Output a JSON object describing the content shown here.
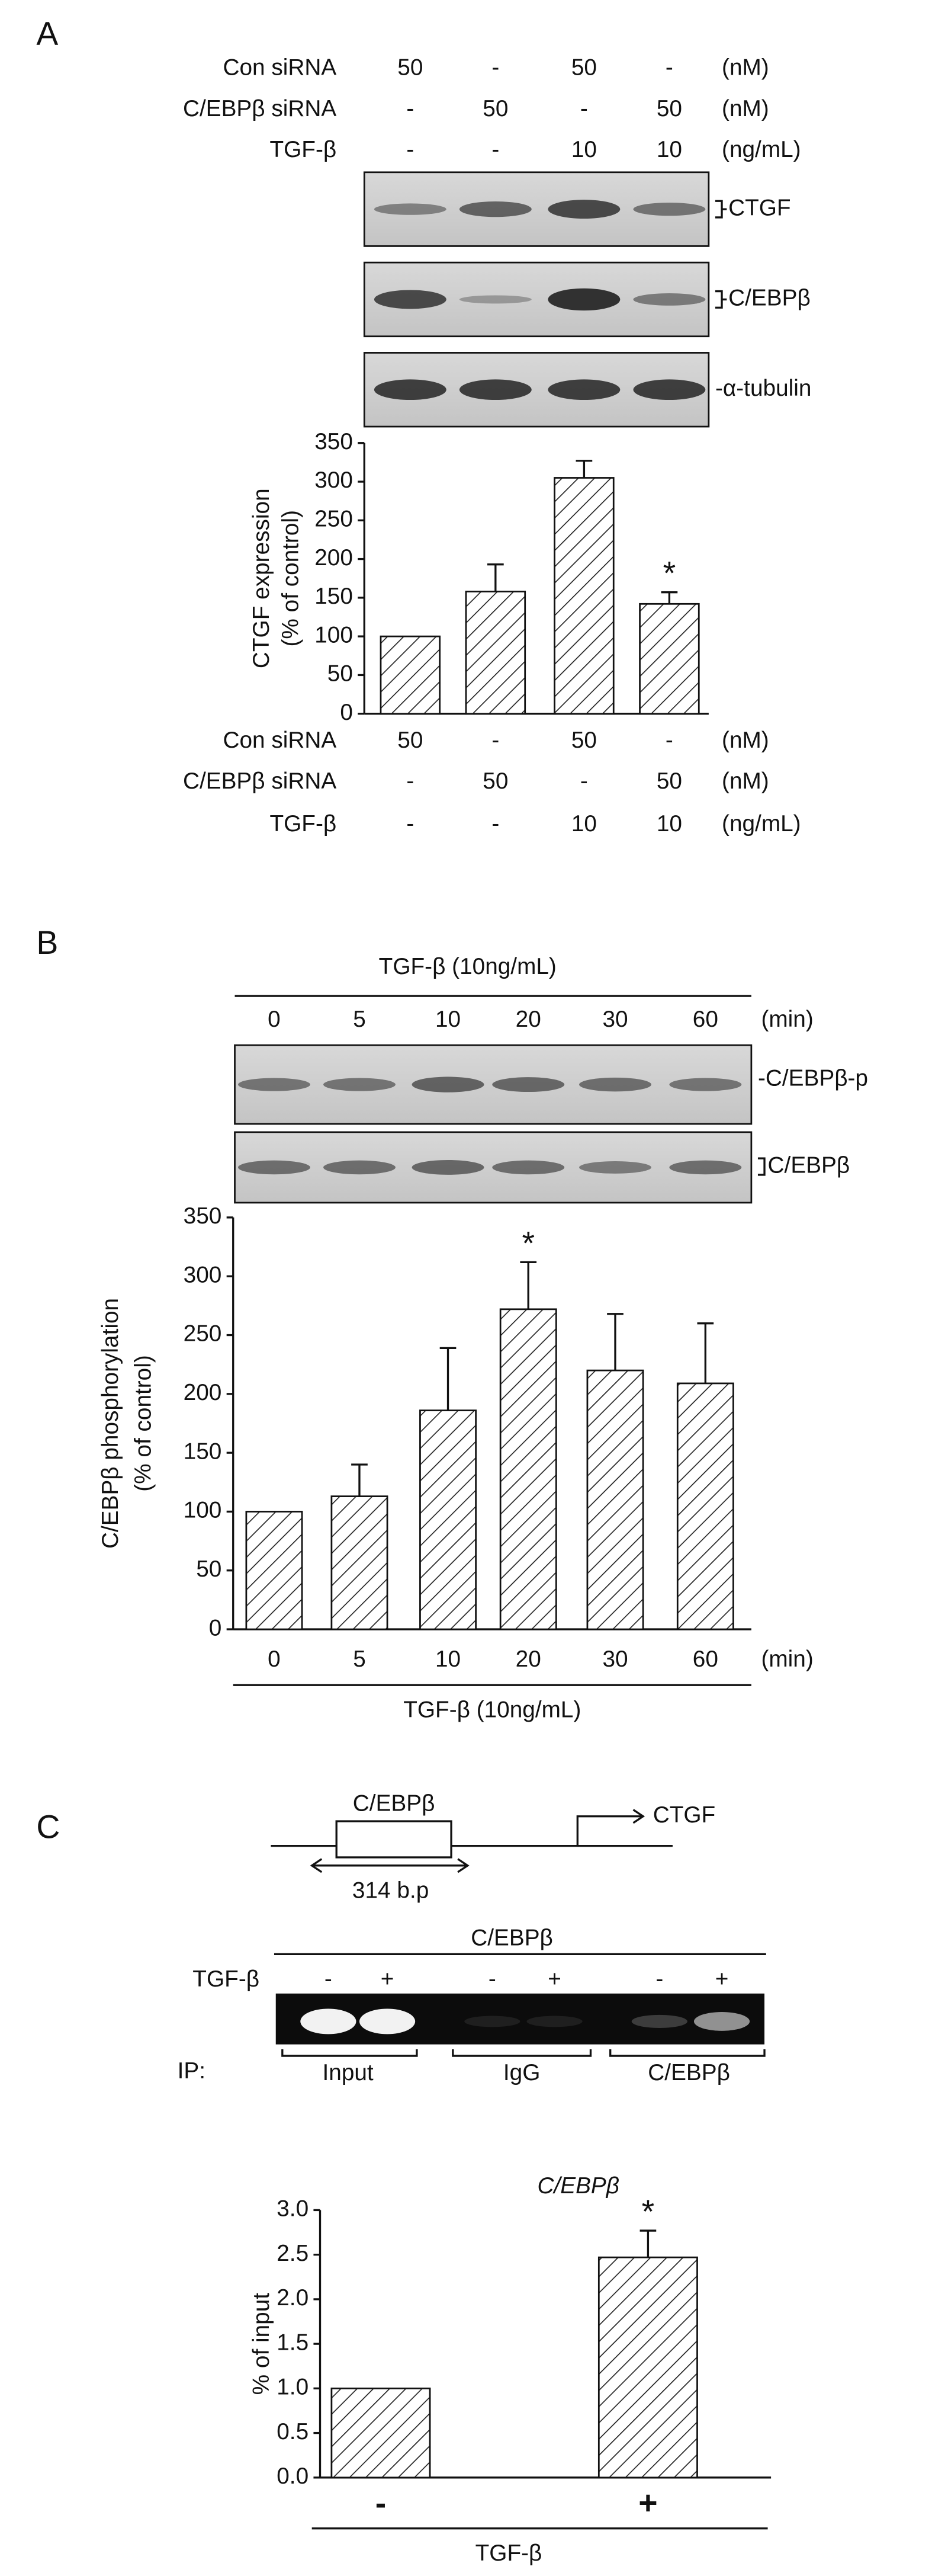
{
  "panel_labels": [
    "A",
    "B",
    "C"
  ],
  "chart_data": [
    {
      "type": "bar",
      "condition_rows": [
        {
          "label": "Con siRNA",
          "cells": [
            "50",
            "-",
            "50",
            "-"
          ],
          "unit": "(nM)"
        },
        {
          "label": "C/EBPβ siRNA",
          "cells": [
            "-",
            "50",
            "-",
            "50"
          ],
          "unit": "(nM)"
        },
        {
          "label": "TGF-β",
          "cells": [
            "-",
            "-",
            "10",
            "10"
          ],
          "unit": "(ng/mL)"
        }
      ],
      "blot_labels": [
        "CTGF",
        "C/EBPβ",
        "-α-tubulin"
      ],
      "ylabel": [
        "CTGF expression",
        "(% of control)"
      ],
      "values": [
        100,
        158,
        305,
        142
      ],
      "errors": [
        null,
        35,
        22,
        15
      ],
      "significance": [
        null,
        null,
        null,
        "*"
      ],
      "ylim": [
        0,
        350
      ],
      "yticks": [
        0,
        50,
        100,
        150,
        200,
        250,
        300,
        350
      ],
      "color": "#ffffff",
      "hatch": true
    },
    {
      "type": "bar",
      "group_label": "TGF-β (10ng/mL)",
      "categories": [
        "0",
        "5",
        "10",
        "20",
        "30",
        "60"
      ],
      "x_unit": "(min)",
      "blot_labels": [
        "-C/EBPβ-p",
        "C/EBPβ"
      ],
      "ylabel": [
        "C/EBPβ phosphorylation",
        "(% of control)"
      ],
      "values": [
        100,
        113,
        186,
        272,
        220,
        209
      ],
      "errors": [
        null,
        27,
        53,
        40,
        48,
        51
      ],
      "significance": [
        null,
        null,
        null,
        "*",
        null,
        null
      ],
      "ylim": [
        0,
        350
      ],
      "yticks": [
        0,
        50,
        100,
        150,
        200,
        250,
        300,
        350
      ],
      "color": "#ffffff",
      "hatch": true
    },
    {
      "type": "bar",
      "title": "C/EBPβ",
      "ylabel": [
        "% of input"
      ],
      "categories": [
        "-",
        "+"
      ],
      "group_label": "TGF-β",
      "values": [
        1.0,
        2.47
      ],
      "errors": [
        null,
        0.3
      ],
      "significance": [
        null,
        "*"
      ],
      "ylim": [
        0,
        3
      ],
      "yticks": [
        {
          "value": 0,
          "label": "0.0"
        },
        {
          "value": 0.5,
          "label": "0.5"
        },
        {
          "value": 1,
          "label": "1.0"
        },
        {
          "value": 1.5,
          "label": "1.5"
        },
        {
          "value": 2,
          "label": "2.0"
        },
        {
          "value": 2.5,
          "label": "2.5"
        },
        {
          "value": 3,
          "label": "3.0"
        }
      ],
      "color": "#ffffff",
      "hatch": true
    }
  ],
  "panel_c_diagram": {
    "element": "C/EBPβ",
    "gene": "CTGF",
    "length": "314 b.p"
  },
  "panel_c_gel": {
    "title": "C/EBPβ",
    "row_label": "TGF-β",
    "lane_signs": [
      "-",
      "+",
      "-",
      "+",
      "-",
      "+"
    ],
    "ip_label": "IP:",
    "ip_groups": [
      "Input",
      "IgG",
      "C/EBPβ"
    ]
  }
}
